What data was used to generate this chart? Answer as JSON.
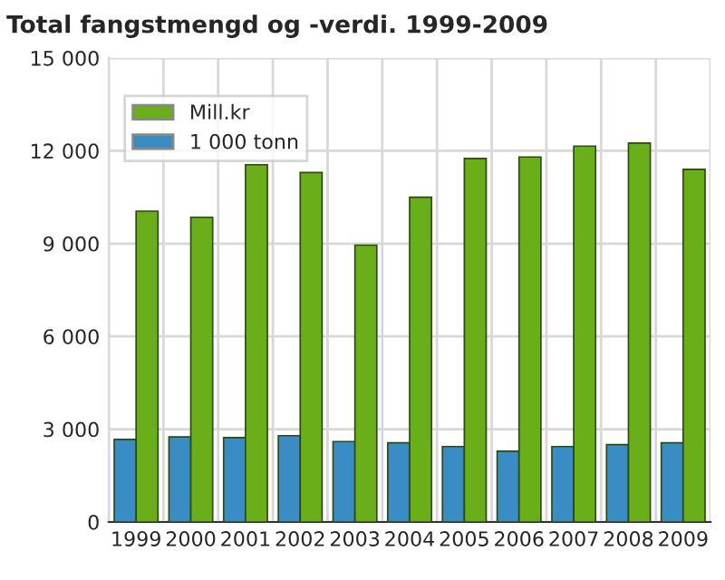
{
  "chart_data": {
    "type": "bar",
    "title": "Total fangstmengd og -verdi. 1999-2009",
    "categories": [
      "1999",
      "2000",
      "2001",
      "2002",
      "2003",
      "2004",
      "2005",
      "2006",
      "2007",
      "2008",
      "2009"
    ],
    "series": [
      {
        "name": "1 000 tonn",
        "color": "#3a8cc4",
        "values": [
          2670,
          2750,
          2730,
          2790,
          2600,
          2560,
          2440,
          2290,
          2440,
          2500,
          2560
        ]
      },
      {
        "name": "Mill.kr",
        "color": "#6aaf1a",
        "values": [
          10050,
          9850,
          11550,
          11300,
          8950,
          10500,
          11750,
          11800,
          12150,
          12250,
          11400
        ]
      }
    ],
    "ylim": [
      0,
      15000
    ],
    "yticks": [
      {
        "value": 0,
        "label": "0"
      },
      {
        "value": 3000,
        "label": "3 000"
      },
      {
        "value": 6000,
        "label": "6 000"
      },
      {
        "value": 9000,
        "label": "9 000"
      },
      {
        "value": 12000,
        "label": "12 000"
      },
      {
        "value": 15000,
        "label": "15 000"
      }
    ],
    "grid": true,
    "legend": "top left"
  }
}
